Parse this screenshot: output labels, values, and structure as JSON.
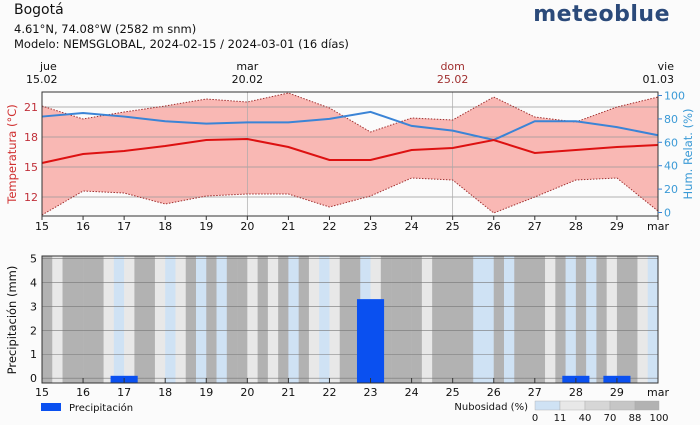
{
  "header": {
    "title": "Bogotá",
    "coords": "4.61°N, 74.08°W (2582 m snm)",
    "model": "Modelo: NEMSGLOBAL, 2024-02-15 / 2024-03-01 (16 días)",
    "logo": "meteoblue"
  },
  "chart_data": [
    {
      "type": "line",
      "title": "",
      "x_ticks": [
        "15",
        "16",
        "17",
        "18",
        "19",
        "20",
        "21",
        "22",
        "23",
        "24",
        "25",
        "26",
        "27",
        "28",
        "29",
        "mar"
      ],
      "top_labels": [
        {
          "day": "jue",
          "date": "15.02",
          "index": 0,
          "color": "#111111"
        },
        {
          "day": "mar",
          "date": "20.02",
          "index": 5,
          "color": "#111111"
        },
        {
          "day": "dom",
          "date": "25.02",
          "index": 10,
          "color": "#a03030"
        },
        {
          "day": "vie",
          "date": "01.03",
          "index": 15,
          "color": "#111111"
        }
      ],
      "ylabel": "Temperatura (°C)",
      "ylabel_right": "Hum. Relat. (%)",
      "ylim": [
        10.1,
        22.5
      ],
      "yticks": [
        12,
        15,
        18,
        21
      ],
      "ylim_right": [
        -3,
        103
      ],
      "yticks_right": [
        0,
        20,
        40,
        60,
        80,
        100
      ],
      "series": [
        {
          "name": "Temperatura media",
          "color": "#dd1111",
          "values": [
            15.4,
            16.3,
            16.6,
            17.1,
            17.7,
            17.8,
            17.0,
            15.7,
            15.7,
            16.7,
            16.9,
            17.7,
            16.4,
            16.7,
            17.0,
            17.2
          ]
        },
        {
          "name": "Temperatura máx",
          "color": "#b03030",
          "values": [
            21.1,
            19.8,
            20.5,
            21.1,
            21.8,
            21.5,
            22.4,
            20.9,
            18.5,
            19.9,
            19.7,
            22.0,
            20.0,
            19.5,
            21.0,
            22.0
          ]
        },
        {
          "name": "Temperatura mín",
          "color": "#b03030",
          "values": [
            10.2,
            12.6,
            12.4,
            11.3,
            12.1,
            12.3,
            12.3,
            11.0,
            12.1,
            13.9,
            13.7,
            10.4,
            12.0,
            13.7,
            13.9,
            10.6
          ]
        },
        {
          "name": "Humedad relativa",
          "color": "#3b84d6",
          "axis": "right",
          "values": [
            82,
            85,
            82,
            78,
            76,
            77,
            77,
            80,
            86,
            74,
            70,
            62,
            78,
            78,
            73,
            66
          ]
        }
      ]
    },
    {
      "type": "bar",
      "ylabel": "Precipitación (mm)",
      "ylim": [
        -0.2,
        5.1
      ],
      "yticks": [
        0,
        1,
        2,
        3,
        4,
        5
      ],
      "x_ticks": [
        "15",
        "16",
        "17",
        "18",
        "19",
        "20",
        "21",
        "22",
        "23",
        "24",
        "25",
        "26",
        "27",
        "28",
        "29",
        "mar"
      ],
      "precip": [
        {
          "day_index": 2,
          "value": 0.1
        },
        {
          "day_index": 8,
          "value": 3.3
        },
        {
          "day_index": 13,
          "value": 0.1
        },
        {
          "day_index": 14,
          "value": 0.1
        }
      ],
      "precip_color": "#0a50f0",
      "legend_precip": "Precipitación",
      "cloud_label": "Nubosidad (%)",
      "cloud_scale_ticks": [
        "0",
        "11",
        "40",
        "70",
        "88",
        "100"
      ],
      "cloud_colors": [
        "#cfe2f4",
        "#e8e8e8",
        "#d6d6d6",
        "#c6c6c6",
        "#b2b2b2"
      ],
      "cloud_cover_6h": [
        95,
        25,
        90,
        95,
        95,
        95,
        20,
        5,
        15,
        95,
        95,
        20,
        5,
        30,
        95,
        5,
        95,
        5,
        95,
        95,
        30,
        95,
        20,
        95,
        5,
        95,
        15,
        5,
        25,
        95,
        95,
        5,
        30,
        95,
        95,
        95,
        95,
        20,
        95,
        95,
        95,
        95,
        5,
        5,
        95,
        5,
        95,
        95,
        95,
        20,
        95,
        5,
        95,
        5,
        95,
        20,
        95,
        95,
        20,
        5
      ]
    }
  ]
}
